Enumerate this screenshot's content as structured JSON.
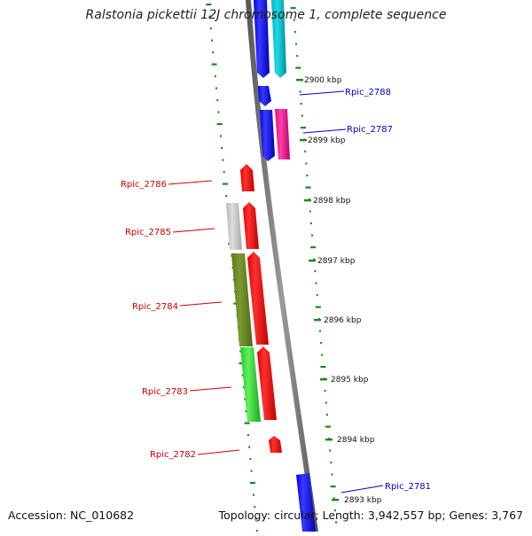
{
  "title": "Ralstonia pickettii 12J chromosome 1, complete sequence",
  "footer": {
    "accession": "Accession: NC_010682",
    "summary": "Topology: circular; Length: 3,942,557 bp; Genes: 3,767"
  },
  "scale_labels": [
    "2900 kbp",
    "2899 kbp",
    "2898 kbp",
    "2897 kbp",
    "2896 kbp",
    "2895 kbp",
    "2894 kbp",
    "2893 kbp"
  ],
  "gene_labels": [
    "Rpic_2788",
    "Rpic_2787",
    "Rpic_2786",
    "Rpic_2785",
    "Rpic_2784",
    "Rpic_2783",
    "Rpic_2782",
    "Rpic_2781"
  ],
  "colors": {
    "forward_label": "#0000cc",
    "reverse_label": "#cc0000",
    "tick": "#1a8a1a",
    "backbone": "#777777"
  }
}
